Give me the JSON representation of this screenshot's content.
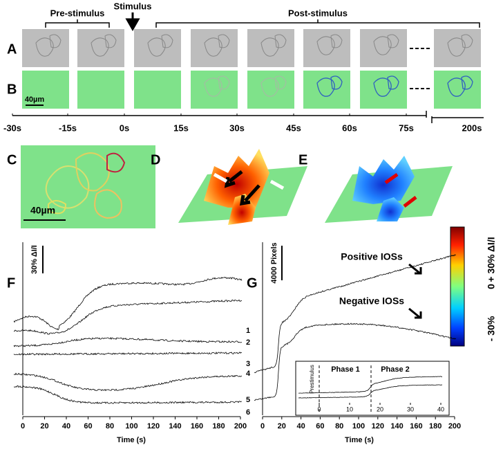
{
  "panel_labels": [
    "A",
    "B",
    "C",
    "D",
    "E",
    "F",
    "G"
  ],
  "timeline": {
    "pre_stimulus": "Pre-stimulus",
    "stimulus": "Stimulus",
    "post_stimulus": "Post-stimulus",
    "times": [
      "-30s",
      "-15s",
      "0s",
      "15s",
      "30s",
      "45s",
      "60s",
      "75s",
      "200s"
    ],
    "scale_bar": "40µm"
  },
  "panel_c": {
    "scale_bar": "40µm"
  },
  "colorbar": {
    "top": "+ 30% ΔI/I",
    "middle": "0",
    "bottom": "- 30%"
  },
  "panel_f": {
    "scale_bar": "30% ΔI/I",
    "trace_labels": [
      "1",
      "2",
      "3",
      "4",
      "5",
      "6"
    ],
    "xticks": [
      0,
      20,
      40,
      60,
      80,
      100,
      120,
      140,
      160,
      180,
      200
    ],
    "xlabel": "Time (s)"
  },
  "panel_g": {
    "scale_bar": "4000 Pixels",
    "positive": "Positive IOSs",
    "negative": "Negative IOSs",
    "xticks": [
      0,
      20,
      40,
      60,
      80,
      100,
      120,
      140,
      160,
      180,
      200
    ],
    "xlabel": "Time (s)",
    "inset": {
      "prestimulus": "Prestimulus",
      "phase_1": "Phase 1",
      "phase_2": "Phase 2",
      "xticks": [
        0,
        10,
        20,
        30,
        40
      ]
    }
  }
}
